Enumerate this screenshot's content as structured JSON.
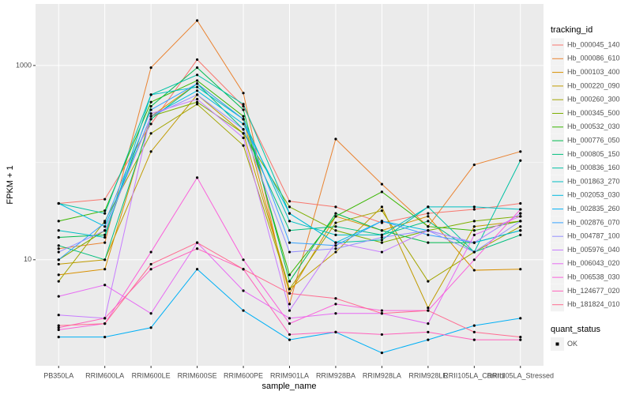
{
  "chart_data": {
    "type": "line",
    "log_y": true,
    "grid": true,
    "x_label": "sample_name",
    "y_label": "FPKM + 1",
    "legend_title": "tracking_id",
    "legend2_title": "quant_status",
    "legend2_entry": "OK",
    "categories": [
      "PB350LA",
      "RRIM600LA",
      "RRIM600LE",
      "RRIM600SE",
      "RRIM600PE",
      "RRIM901LA",
      "RRIM928BA",
      "RRIM928LA",
      "RRIM928LE",
      "RRII105LA_Control",
      "RRII105LA_Stressed"
    ],
    "ylim": [
      0.81,
      4300
    ],
    "yticks": [
      10,
      1000
    ],
    "series": [
      {
        "name": "Hb_000045_140",
        "color": "#F8766D",
        "values": [
          38,
          42,
          250,
          1150,
          380,
          40,
          35,
          24,
          30,
          33,
          38
        ]
      },
      {
        "name": "Hb_000086_610",
        "color": "#EA8331",
        "values": [
          13,
          15,
          950,
          2900,
          520,
          3.5,
          175,
          60,
          22,
          95,
          130
        ]
      },
      {
        "name": "Hb_000103_400",
        "color": "#D89000",
        "values": [
          7,
          8,
          300,
          650,
          280,
          4.5,
          28,
          20,
          28,
          7.8,
          8
        ]
      },
      {
        "name": "Hb_000220_090",
        "color": "#C09B00",
        "values": [
          9,
          10,
          130,
          500,
          200,
          5,
          12,
          35,
          3.2,
          22,
          25
        ]
      },
      {
        "name": "Hb_000260_300",
        "color": "#A3A500",
        "values": [
          6,
          25,
          200,
          400,
          150,
          5,
          24,
          32,
          6,
          12,
          22
        ]
      },
      {
        "name": "Hb_000345_500",
        "color": "#7CAE00",
        "values": [
          10,
          20,
          300,
          420,
          200,
          35,
          20,
          15,
          20,
          25,
          28
        ]
      },
      {
        "name": "Hb_000532_030",
        "color": "#39B600",
        "values": [
          25,
          32,
          420,
          700,
          300,
          7,
          28,
          50,
          22,
          20,
          25
        ]
      },
      {
        "name": "Hb_000776_050",
        "color": "#00BB4E",
        "values": [
          17,
          18,
          380,
          950,
          350,
          6,
          30,
          20,
          15,
          15,
          20
        ]
      },
      {
        "name": "Hb_000805_150",
        "color": "#00BF7D",
        "values": [
          14,
          10,
          280,
          650,
          220,
          20,
          22,
          18,
          25,
          12,
          18
        ]
      },
      {
        "name": "Hb_000836_160",
        "color": "#00C1A3",
        "values": [
          38,
          30,
          500,
          800,
          400,
          30,
          15,
          16,
          35,
          12,
          105
        ]
      },
      {
        "name": "Hb_001863_270",
        "color": "#00BFC4",
        "values": [
          20,
          17,
          500,
          600,
          280,
          25,
          18,
          18,
          35,
          35,
          33
        ]
      },
      {
        "name": "Hb_002053_030",
        "color": "#00BAE0",
        "values": [
          38,
          22,
          300,
          550,
          250,
          30,
          15,
          25,
          20,
          15,
          20
        ]
      },
      {
        "name": "Hb_002835_260",
        "color": "#00B0F6",
        "values": [
          1.6,
          1.6,
          2,
          8,
          3,
          1.5,
          1.8,
          1.1,
          1.5,
          2.1,
          2.5
        ]
      },
      {
        "name": "Hb_002876_070",
        "color": "#35A2FF",
        "values": [
          10,
          24,
          350,
          650,
          280,
          15,
          14,
          25,
          18,
          15,
          30
        ]
      },
      {
        "name": "Hb_004787_100",
        "color": "#9590FF",
        "values": [
          12,
          20,
          300,
          500,
          220,
          12,
          13,
          17,
          20,
          12,
          25
        ]
      },
      {
        "name": "Hb_005976_040",
        "color": "#C77CFF",
        "values": [
          2.7,
          2.5,
          320,
          450,
          180,
          3,
          15,
          12,
          20,
          15,
          30
        ]
      },
      {
        "name": "Hb_006043_020",
        "color": "#E76BF3",
        "values": [
          4.2,
          5.5,
          2.8,
          15,
          4.8,
          2.5,
          2.8,
          2.8,
          2.2,
          18,
          28
        ]
      },
      {
        "name": "Hb_006538_030",
        "color": "#FA62DB",
        "values": [
          1.9,
          2.2,
          12,
          70,
          10,
          2.2,
          3.5,
          3,
          3,
          10,
          33
        ]
      },
      {
        "name": "Hb_124677_020",
        "color": "#FF62BC",
        "values": [
          2,
          2.5,
          8,
          13,
          8,
          1.7,
          1.8,
          1.7,
          1.8,
          1.5,
          1.5
        ]
      },
      {
        "name": "Hb_181824_010",
        "color": "#FF6C91",
        "values": [
          2.1,
          2.2,
          9,
          15,
          8,
          4.5,
          4,
          2.8,
          3,
          1.8,
          1.6
        ]
      }
    ]
  }
}
